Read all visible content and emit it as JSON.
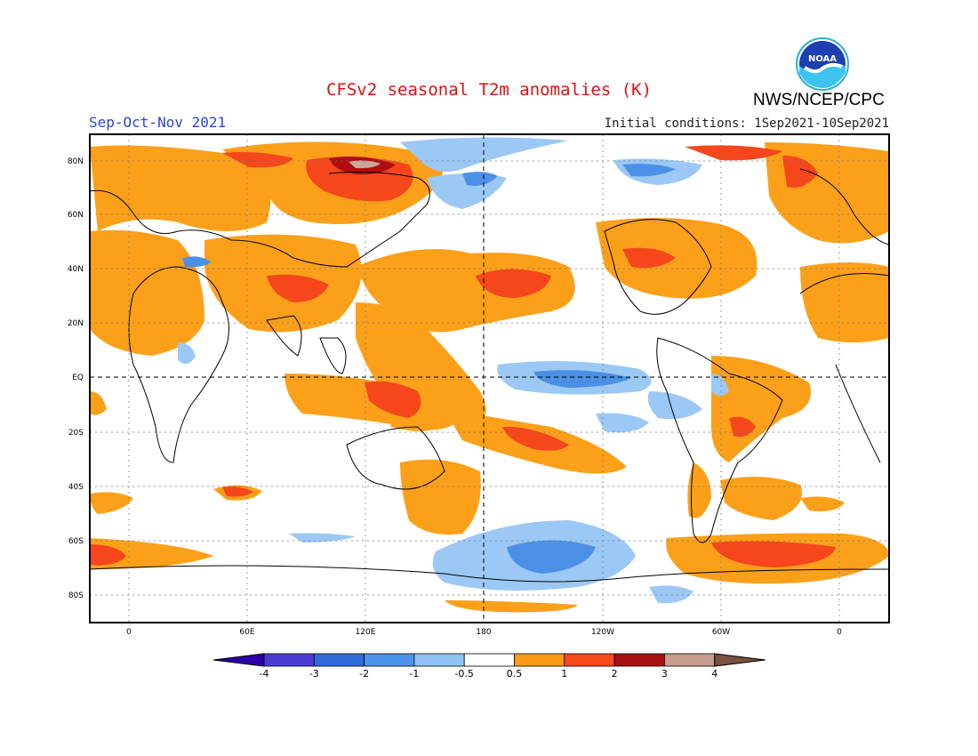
{
  "header": {
    "title": "CFSv2 seasonal T2m anomalies (K)",
    "organization": "NWS/NCEP/CPC",
    "season": "Sep-Oct-Nov 2021",
    "initial_conditions": "Initial conditions: 1Sep2021-10Sep2021",
    "logo_text": "NOAA"
  },
  "map": {
    "lat_labels": [
      "80N",
      "60N",
      "40N",
      "20N",
      "EQ",
      "20S",
      "40S",
      "60S",
      "80S"
    ],
    "lon_labels": [
      "0",
      "60E",
      "120E",
      "180",
      "120W",
      "60W",
      "0"
    ]
  },
  "colorbar": {
    "labels": [
      "-4",
      "-3",
      "-2",
      "-1",
      "-0.5",
      "0.5",
      "1",
      "2",
      "3",
      "4"
    ],
    "colors": [
      "#2b00a8",
      "#4a3bd4",
      "#2f6ad8",
      "#4d93ea",
      "#8fc1f3",
      "#ffffff",
      "#fc9c16",
      "#f7491c",
      "#a80f0f",
      "#c79e8e",
      "#7a5040"
    ]
  },
  "colors": {
    "anom_05_1": "#fca01a",
    "anom_1_2": "#f5471b",
    "anom_2_3": "#b00e0e",
    "anom_3_4": "#cfa597",
    "anom_m05_m1": "#9cc8f5",
    "anom_m1_m2": "#4b8fe6",
    "title": "#e01010",
    "season": "#2a46d6"
  }
}
